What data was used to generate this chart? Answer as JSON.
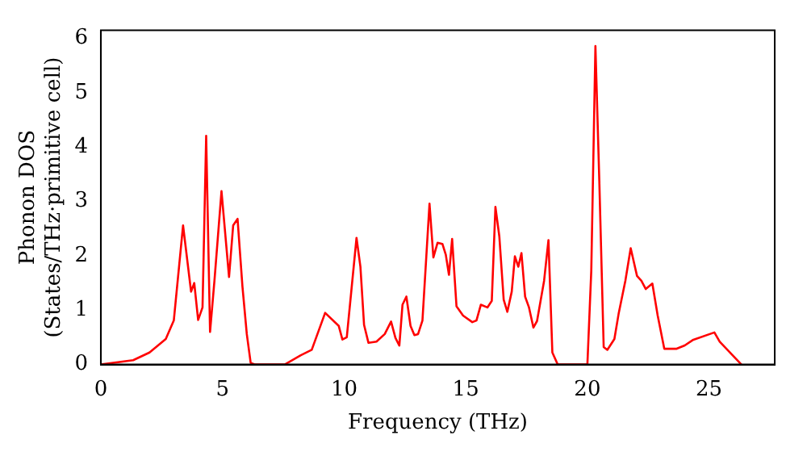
{
  "chart_data": {
    "type": "line",
    "xlabel": "Frequency (THz)",
    "ylabel": "Phonon DOS\n(States/THz·primitive cell)",
    "x": [
      0,
      1.33,
      2.0,
      2.67,
      3.0,
      3.38,
      3.71,
      3.84,
      4.0,
      4.18,
      4.33,
      4.49,
      4.67,
      4.96,
      5.27,
      5.44,
      5.62,
      5.82,
      6.0,
      6.16,
      6.33,
      7.56,
      8.22,
      8.67,
      9.22,
      9.78,
      9.93,
      10.11,
      10.51,
      10.67,
      10.82,
      11.0,
      11.33,
      11.67,
      11.93,
      12.11,
      12.27,
      12.4,
      12.56,
      12.73,
      12.89,
      13.04,
      13.22,
      13.51,
      13.67,
      13.84,
      14.04,
      14.18,
      14.31,
      14.44,
      14.62,
      14.89,
      15.27,
      15.44,
      15.62,
      15.89,
      16.07,
      16.22,
      16.38,
      16.56,
      16.71,
      16.89,
      17.02,
      17.16,
      17.29,
      17.44,
      17.6,
      17.78,
      17.93,
      18.22,
      18.4,
      18.56,
      18.78,
      20.0,
      20.16,
      20.33,
      20.49,
      20.67,
      20.82,
      21.11,
      21.29,
      21.56,
      21.78,
      22.04,
      22.22,
      22.4,
      22.67,
      22.89,
      23.16,
      23.67,
      24.0,
      24.33,
      25.22,
      25.44,
      26.33
    ],
    "series": [
      {
        "color": "#ff0000",
        "values": [
          0,
          0.08,
          0.22,
          0.47,
          0.81,
          2.56,
          1.34,
          1.5,
          0.82,
          1.05,
          4.21,
          0.6,
          1.54,
          3.19,
          1.61,
          2.56,
          2.68,
          1.44,
          0.56,
          0.03,
          0,
          0,
          0.17,
          0.27,
          0.95,
          0.71,
          0.46,
          0.5,
          2.33,
          1.8,
          0.73,
          0.4,
          0.42,
          0.56,
          0.79,
          0.49,
          0.35,
          1.1,
          1.25,
          0.71,
          0.54,
          0.56,
          0.81,
          2.96,
          1.97,
          2.24,
          2.22,
          2.02,
          1.65,
          2.31,
          1.07,
          0.9,
          0.78,
          0.81,
          1.1,
          1.05,
          1.17,
          2.9,
          2.36,
          1.19,
          0.97,
          1.34,
          1.99,
          1.8,
          2.05,
          1.25,
          1.05,
          0.68,
          0.8,
          1.54,
          2.29,
          0.22,
          0,
          0,
          1.73,
          5.86,
          3.38,
          0.32,
          0.27,
          0.47,
          0.95,
          1.54,
          2.14,
          1.63,
          1.54,
          1.39,
          1.49,
          0.9,
          0.29,
          0.29,
          0.35,
          0.45,
          0.59,
          0.42,
          0
        ]
      }
    ],
    "xlim": [
      0,
      27.7
    ],
    "xticks": [
      0,
      5,
      10,
      15,
      20,
      25
    ],
    "ylim": [
      0,
      6.15
    ],
    "yticks": [
      0,
      1,
      2,
      3,
      4,
      5,
      6
    ],
    "grid": false,
    "legend": false,
    "marker": "none",
    "line_style": "solid"
  }
}
